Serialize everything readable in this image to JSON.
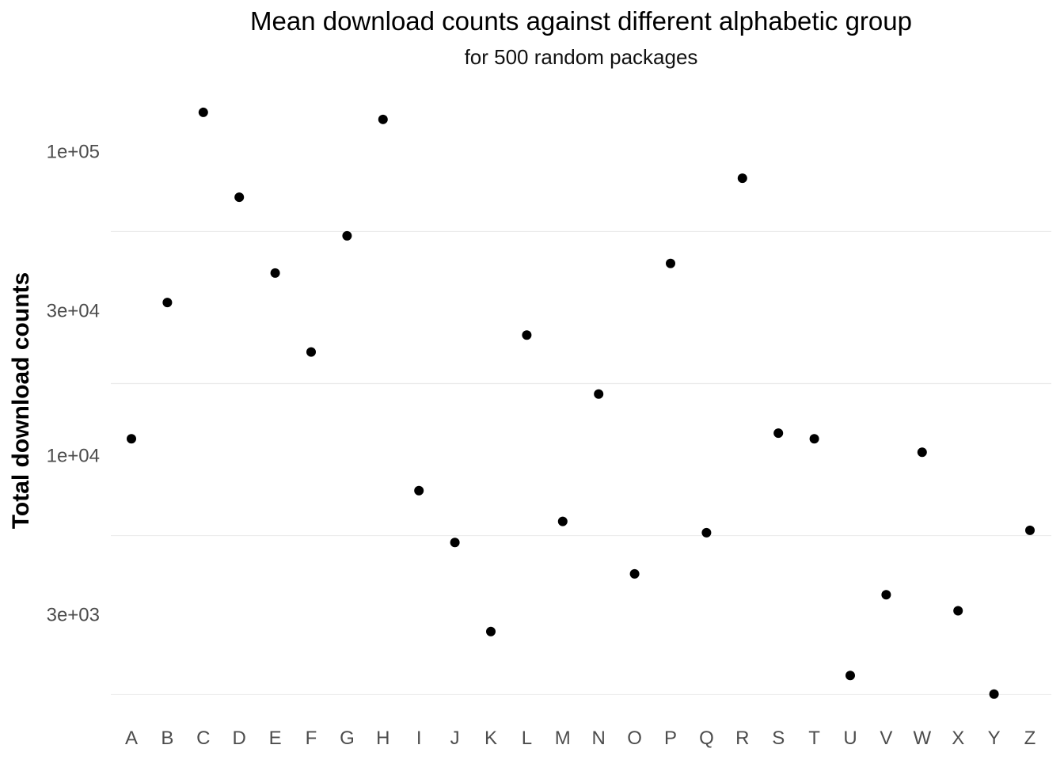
{
  "chart_data": {
    "type": "scatter",
    "title": "Mean download counts against different alphabetic group",
    "subtitle": "for 500 random packages",
    "xlabel": "",
    "ylabel": "Total download counts",
    "y_scale": "log10",
    "ylim": [
      1700,
      150000
    ],
    "y_ticks": [
      3000,
      10000,
      30000,
      100000
    ],
    "y_tick_labels": [
      "3e+03",
      "1e+04",
      "3e+04",
      "1e+05"
    ],
    "grid": "horizontal major and minor",
    "categories": [
      "A",
      "B",
      "C",
      "D",
      "E",
      "F",
      "G",
      "H",
      "I",
      "J",
      "K",
      "L",
      "M",
      "N",
      "O",
      "P",
      "Q",
      "R",
      "S",
      "T",
      "U",
      "V",
      "W",
      "X",
      "Y",
      "Z"
    ],
    "values": [
      11400,
      32000,
      135000,
      71000,
      40000,
      22000,
      53000,
      128000,
      7700,
      5200,
      2650,
      25000,
      6100,
      16000,
      4100,
      43000,
      5600,
      82000,
      11900,
      11400,
      1900,
      3500,
      10300,
      3100,
      1650,
      5700
    ],
    "point_color": "#000000"
  }
}
